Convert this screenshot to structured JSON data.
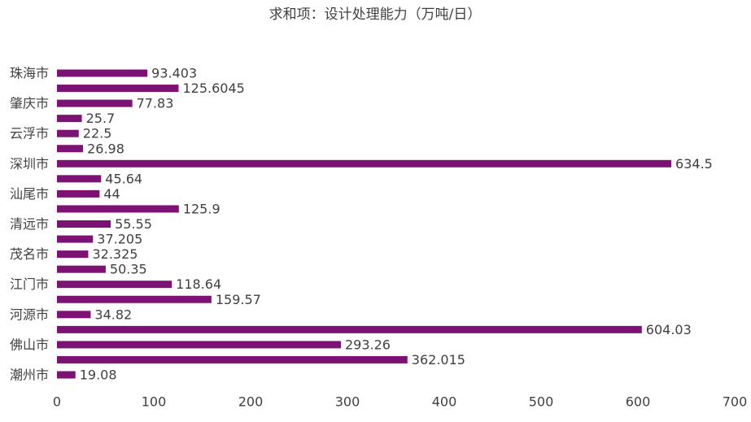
{
  "chart_data": {
    "type": "barh",
    "title": "求和项：设计处理能力（万吨/日）",
    "categories": [
      "珠海市",
      null,
      "肇庆市",
      null,
      "云浮市",
      null,
      "深圳市",
      null,
      "汕尾市",
      null,
      "清远市",
      null,
      "茂名市",
      null,
      "江门市",
      null,
      "河源市",
      null,
      "佛山市",
      null,
      "潮州市"
    ],
    "values": [
      93.403,
      125.6045,
      77.83,
      25.7,
      22.5,
      26.98,
      634.5,
      45.64,
      44,
      125.9,
      55.55,
      37.205,
      32.325,
      50.35,
      118.64,
      159.57,
      34.82,
      604.03,
      293.26,
      362.015,
      19.08
    ],
    "color": "#7b1274",
    "xlim": [
      0,
      700
    ],
    "xticks": [
      0,
      100,
      200,
      300,
      400,
      500,
      600,
      700
    ],
    "grid": false
  }
}
